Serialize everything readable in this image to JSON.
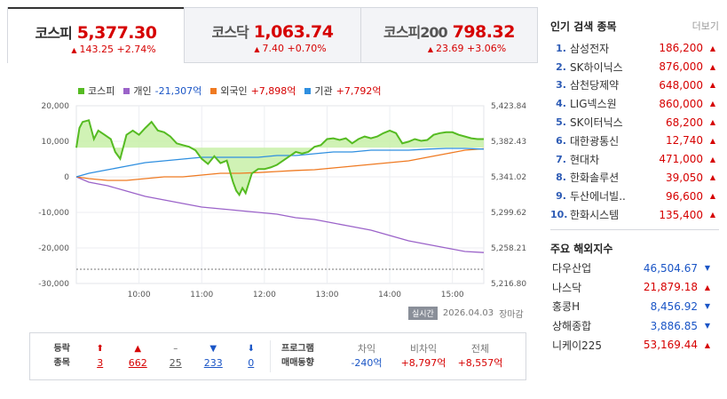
{
  "tabs": [
    {
      "name": "코스피",
      "value": "5,377.30",
      "change": "143.25",
      "rate": "+2.74%"
    },
    {
      "name": "코스닥",
      "value": "1,063.74",
      "change": "7.40",
      "rate": "+0.70%"
    },
    {
      "name": "코스피200",
      "value": "798.32",
      "change": "23.69",
      "rate": "+3.06%"
    }
  ],
  "legend": {
    "kospi": "코스피",
    "individual": "개인",
    "individual_val": "-21,307억",
    "foreign": "외국인",
    "foreign_val": "+7,898억",
    "institution": "기관",
    "institution_val": "+7,792억"
  },
  "colors": {
    "kospi": "#55bb22",
    "individual": "#9b63c9",
    "foreign": "#ef7a22",
    "institution": "#2f8fe0",
    "up": "#d60000",
    "down": "#1a55c6"
  },
  "chart_data": {
    "type": "line",
    "x_ticks": [
      "10:00",
      "11:00",
      "12:00",
      "13:00",
      "14:00",
      "15:00"
    ],
    "left_axis": {
      "ticks": [
        "20,000",
        "10,000",
        "0",
        "-10,000",
        "-20,000",
        "-30,000"
      ],
      "ylim": [
        -30000,
        20000
      ]
    },
    "right_axis": {
      "ticks": [
        "5,423.84",
        "5,382.43",
        "5,341.02",
        "5,299.62",
        "5,258.21",
        "5,216.80"
      ],
      "ylim": [
        5216.8,
        5423.84
      ]
    },
    "x_range": [
      9.0,
      15.5
    ],
    "series": [
      {
        "name": "코스피",
        "axis": "right",
        "x": [
          9.0,
          9.05,
          9.1,
          9.2,
          9.28,
          9.35,
          9.45,
          9.55,
          9.62,
          9.7,
          9.8,
          9.9,
          10.0,
          10.1,
          10.2,
          10.3,
          10.4,
          10.5,
          10.6,
          10.7,
          10.8,
          10.9,
          11.0,
          11.1,
          11.2,
          11.3,
          11.4,
          11.5,
          11.55,
          11.6,
          11.65,
          11.7,
          11.8,
          11.9,
          12.0,
          12.1,
          12.2,
          12.3,
          12.4,
          12.5,
          12.6,
          12.7,
          12.8,
          12.9,
          13.0,
          13.1,
          13.2,
          13.3,
          13.4,
          13.5,
          13.6,
          13.7,
          13.8,
          13.9,
          14.0,
          14.1,
          14.2,
          14.3,
          14.4,
          14.5,
          14.6,
          14.7,
          14.8,
          14.9,
          15.0,
          15.1,
          15.2,
          15.3,
          15.4,
          15.5
        ],
        "y": [
          5375,
          5398,
          5405,
          5407,
          5385,
          5395,
          5390,
          5385,
          5370,
          5362,
          5390,
          5395,
          5390,
          5398,
          5405,
          5395,
          5393,
          5388,
          5380,
          5378,
          5376,
          5372,
          5362,
          5356,
          5365,
          5357,
          5360,
          5335,
          5325,
          5320,
          5328,
          5322,
          5345,
          5350,
          5350,
          5352,
          5355,
          5360,
          5365,
          5370,
          5368,
          5370,
          5376,
          5378,
          5385,
          5386,
          5384,
          5386,
          5380,
          5385,
          5388,
          5386,
          5388,
          5392,
          5395,
          5392,
          5380,
          5382,
          5385,
          5383,
          5384,
          5390,
          5392,
          5393,
          5393,
          5390,
          5388,
          5386,
          5385,
          5385
        ]
      },
      {
        "name": "개인",
        "axis": "left",
        "x": [
          9.0,
          9.2,
          9.5,
          9.8,
          10.1,
          10.4,
          10.7,
          11.0,
          11.3,
          11.6,
          11.9,
          12.2,
          12.5,
          12.8,
          13.1,
          13.4,
          13.7,
          14.0,
          14.3,
          14.6,
          14.9,
          15.2,
          15.5
        ],
        "y": [
          0,
          -1500,
          -2500,
          -4000,
          -5500,
          -6500,
          -7500,
          -8500,
          -9000,
          -9500,
          -10000,
          -10500,
          -11500,
          -12000,
          -13000,
          -14000,
          -15000,
          -16500,
          -18000,
          -19000,
          -20000,
          -21000,
          -21307
        ]
      },
      {
        "name": "외국인",
        "axis": "left",
        "x": [
          9.0,
          9.2,
          9.5,
          9.8,
          10.1,
          10.4,
          10.7,
          11.0,
          11.3,
          11.6,
          11.9,
          12.2,
          12.5,
          12.8,
          13.1,
          13.4,
          13.7,
          14.0,
          14.3,
          14.6,
          14.9,
          15.2,
          15.5
        ],
        "y": [
          0,
          -500,
          -1000,
          -1000,
          -500,
          0,
          0,
          500,
          1000,
          1000,
          1200,
          1500,
          1800,
          2000,
          2500,
          3000,
          3500,
          4000,
          4500,
          5500,
          6500,
          7500,
          7898
        ]
      },
      {
        "name": "기관",
        "axis": "left",
        "x": [
          9.0,
          9.2,
          9.5,
          9.8,
          10.1,
          10.4,
          10.7,
          11.0,
          11.3,
          11.6,
          11.9,
          12.2,
          12.5,
          12.8,
          13.1,
          13.4,
          13.7,
          14.0,
          14.3,
          14.6,
          14.9,
          15.2,
          15.5
        ],
        "y": [
          0,
          1000,
          2000,
          3000,
          4000,
          4500,
          5000,
          5500,
          5500,
          5500,
          5500,
          6000,
          6000,
          6500,
          7000,
          7000,
          7500,
          7500,
          7500,
          7800,
          8000,
          8000,
          7792
        ]
      }
    ]
  },
  "chart_foot": {
    "realtime": "실시간",
    "date": "2026.04.03",
    "status": "장마감"
  },
  "summary": {
    "head_line1": "등락",
    "head_line2": "종목",
    "cols": [
      {
        "sym": "⬆",
        "val": "3",
        "cls": "c-red"
      },
      {
        "sym": "▲",
        "val": "662",
        "cls": "c-red"
      },
      {
        "sym": "–",
        "val": "25",
        "cls": "c-gray"
      },
      {
        "sym": "▼",
        "val": "233",
        "cls": "c-blue"
      },
      {
        "sym": "⬇",
        "val": "0",
        "cls": "c-blue"
      }
    ],
    "prog_line1": "프로그램",
    "prog_line2": "매매동향",
    "prog": [
      {
        "label": "차익",
        "val": "-240억",
        "cls": "c-blue"
      },
      {
        "label": "비차익",
        "val": "+8,797억",
        "cls": "c-red"
      },
      {
        "label": "전체",
        "val": "+8,557억",
        "cls": "c-red"
      }
    ]
  },
  "panel": {
    "title": "인기 검색 종목",
    "more": "더보기",
    "ranks": [
      {
        "no": "1.",
        "name": "삼성전자",
        "price": "186,200"
      },
      {
        "no": "2.",
        "name": "SK하이닉스",
        "price": "876,000"
      },
      {
        "no": "3.",
        "name": "삼천당제약",
        "price": "648,000"
      },
      {
        "no": "4.",
        "name": "LIG넥스원",
        "price": "860,000"
      },
      {
        "no": "5.",
        "name": "SK이터닉스",
        "price": "68,200"
      },
      {
        "no": "6.",
        "name": "대한광통신",
        "price": "12,740"
      },
      {
        "no": "7.",
        "name": "현대차",
        "price": "471,000"
      },
      {
        "no": "8.",
        "name": "한화솔루션",
        "price": "39,050"
      },
      {
        "no": "9.",
        "name": "두산에너빌..",
        "price": "96,600"
      },
      {
        "no": "10.",
        "name": "한화시스템",
        "price": "135,400"
      }
    ],
    "world_title": "주요 해외지수",
    "world": [
      {
        "name": "다우산업",
        "val": "46,504.67",
        "dir": "down"
      },
      {
        "name": "나스닥",
        "val": "21,879.18",
        "dir": "up"
      },
      {
        "name": "홍콩H",
        "val": "8,456.92",
        "dir": "down"
      },
      {
        "name": "상해종합",
        "val": "3,886.85",
        "dir": "down"
      },
      {
        "name": "니케이225",
        "val": "53,169.44",
        "dir": "up"
      }
    ]
  }
}
